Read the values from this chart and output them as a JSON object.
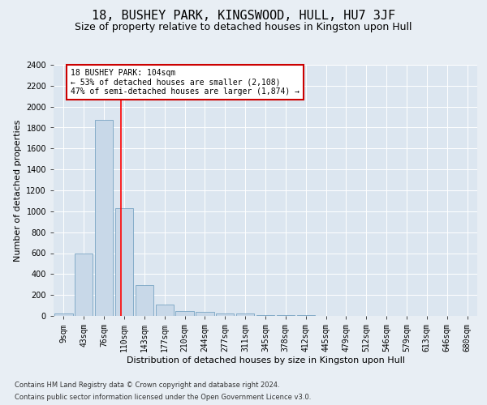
{
  "title": "18, BUSHEY PARK, KINGSWOOD, HULL, HU7 3JF",
  "subtitle": "Size of property relative to detached houses in Kingston upon Hull",
  "xlabel": "Distribution of detached houses by size in Kingston upon Hull",
  "ylabel": "Number of detached properties",
  "footnote1": "Contains HM Land Registry data © Crown copyright and database right 2024.",
  "footnote2": "Contains public sector information licensed under the Open Government Licence v3.0.",
  "annotation_title": "18 BUSHEY PARK: 104sqm",
  "annotation_line1": "← 53% of detached houses are smaller (2,108)",
  "annotation_line2": "47% of semi-detached houses are larger (1,874) →",
  "bar_labels": [
    "9sqm",
    "43sqm",
    "76sqm",
    "110sqm",
    "143sqm",
    "177sqm",
    "210sqm",
    "244sqm",
    "277sqm",
    "311sqm",
    "345sqm",
    "378sqm",
    "412sqm",
    "445sqm",
    "479sqm",
    "512sqm",
    "546sqm",
    "579sqm",
    "613sqm",
    "646sqm",
    "680sqm"
  ],
  "bar_values": [
    20,
    600,
    1875,
    1030,
    295,
    110,
    50,
    40,
    25,
    20,
    5,
    5,
    5,
    2,
    2,
    2,
    2,
    2,
    2,
    2,
    2
  ],
  "bar_color": "#c8d8e8",
  "bar_edge_color": "#6699bb",
  "red_line_x": 2.82,
  "ylim": [
    0,
    2400
  ],
  "yticks": [
    0,
    200,
    400,
    600,
    800,
    1000,
    1200,
    1400,
    1600,
    1800,
    2000,
    2200,
    2400
  ],
  "bg_color": "#e8eef4",
  "plot_bg_color": "#dce6f0",
  "grid_color": "#ffffff",
  "title_fontsize": 11,
  "subtitle_fontsize": 9,
  "axis_label_fontsize": 8,
  "tick_fontsize": 7,
  "annotation_box_color": "#ffffff",
  "annotation_box_edge": "#cc0000"
}
